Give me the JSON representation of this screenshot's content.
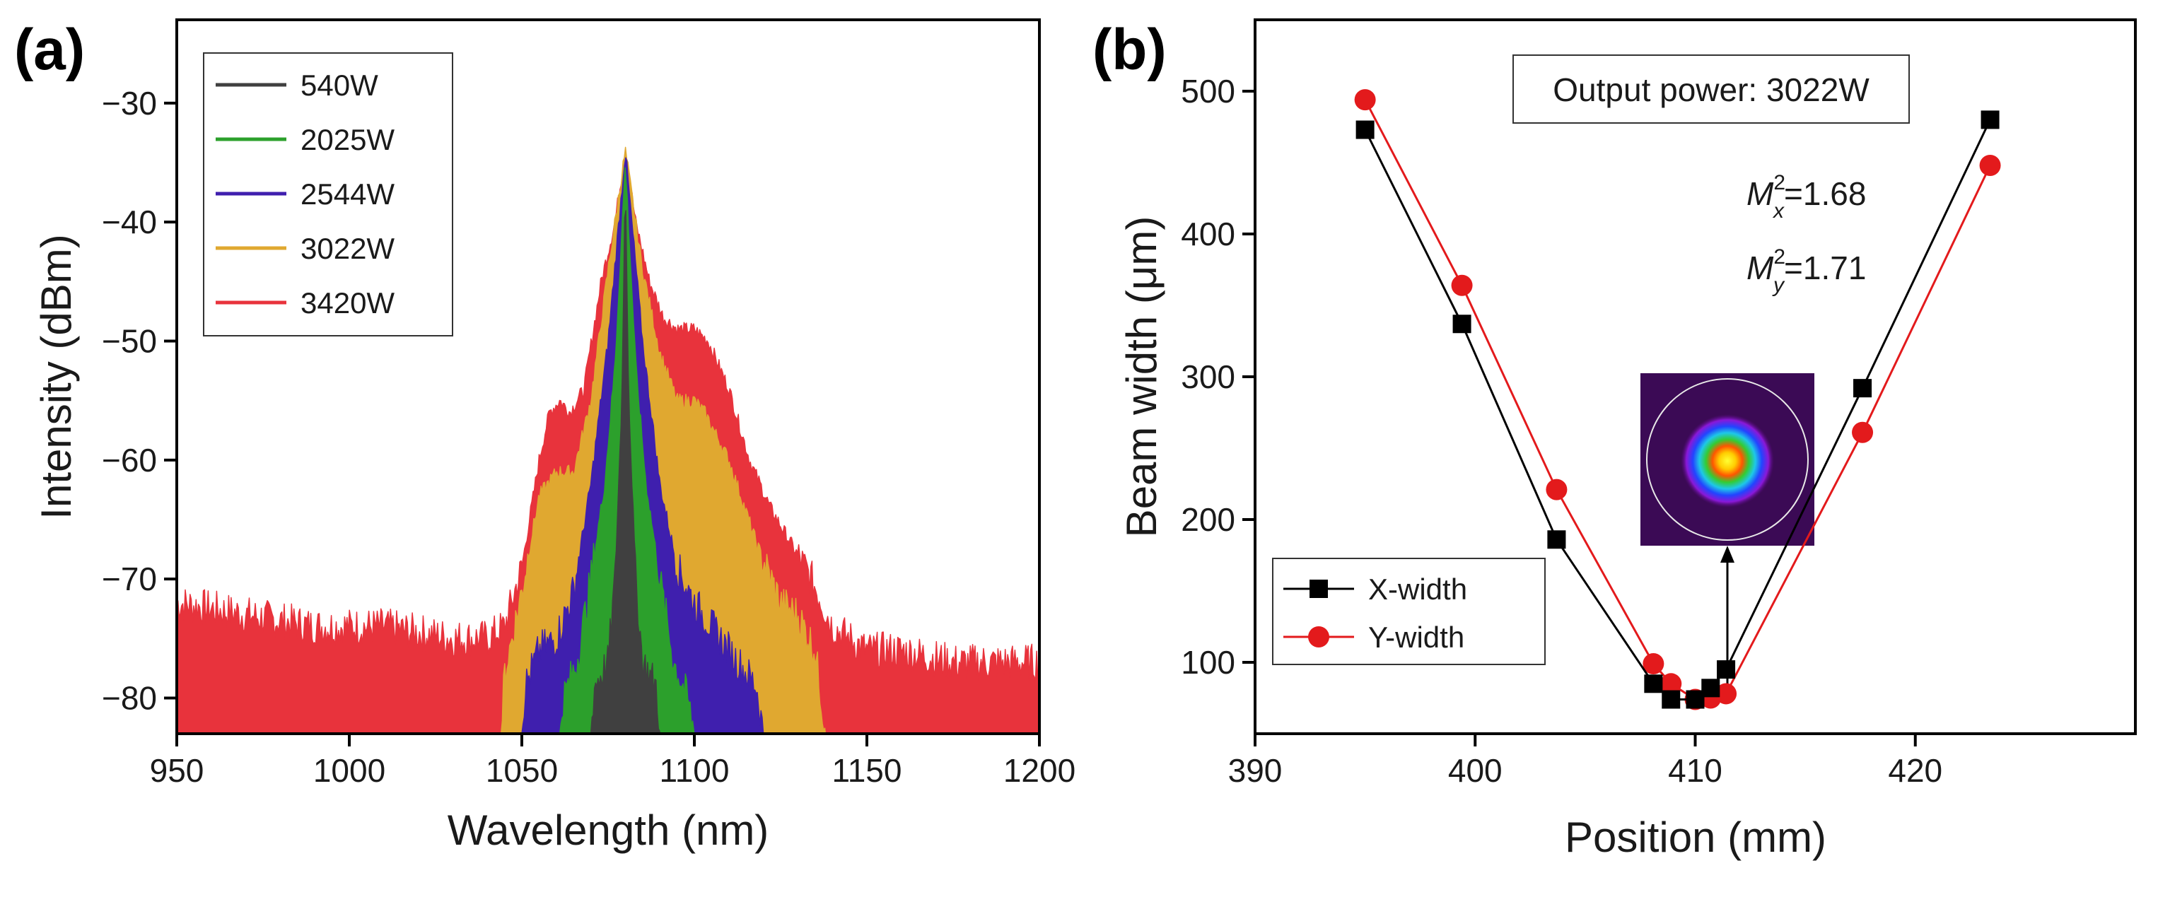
{
  "figure": {
    "panel_a_label": "(a)",
    "panel_b_label": "(b)"
  },
  "chart_data": [
    {
      "type": "line",
      "panel": "(a)",
      "xlabel": "Wavelength (nm)",
      "ylabel": "Intensity (dBm)",
      "xlim": [
        950,
        1200
      ],
      "ylim": [
        -83,
        -23
      ],
      "xticks": [
        950,
        1000,
        1050,
        1100,
        1150,
        1200
      ],
      "yticks": [
        -80,
        -70,
        -60,
        -50,
        -40,
        -30
      ],
      "tick_labels_y": [
        "−80",
        "−70",
        "−60",
        "−50",
        "−40",
        "−30"
      ],
      "legend_position": "top-left",
      "series": [
        {
          "name": "540W",
          "color": "#404040",
          "points": [
            [
              1070,
              -83
            ],
            [
              1071,
              -79
            ],
            [
              1075,
              -77
            ],
            [
              1077,
              -70
            ],
            [
              1079,
              -55
            ],
            [
              1080,
              -36
            ],
            [
              1081,
              -55
            ],
            [
              1083,
              -70
            ],
            [
              1085,
              -77
            ],
            [
              1089,
              -79
            ],
            [
              1090,
              -83
            ]
          ]
        },
        {
          "name": "2025W",
          "color": "#2ca02c",
          "points": [
            [
              1061,
              -83
            ],
            [
              1062,
              -80
            ],
            [
              1066,
              -77
            ],
            [
              1070,
              -70
            ],
            [
              1074,
              -62
            ],
            [
              1077,
              -52
            ],
            [
              1080,
              -35
            ],
            [
              1083,
              -52
            ],
            [
              1086,
              -62
            ],
            [
              1090,
              -70
            ],
            [
              1094,
              -77
            ],
            [
              1098,
              -80
            ],
            [
              1100,
              -83
            ]
          ]
        },
        {
          "name": "2544W",
          "color": "#3f1fae",
          "points": [
            [
              1050,
              -83
            ],
            [
              1051,
              -79
            ],
            [
              1055,
              -76
            ],
            [
              1060,
              -75
            ],
            [
              1065,
              -71
            ],
            [
              1070,
              -62
            ],
            [
              1075,
              -50
            ],
            [
              1080,
              -34
            ],
            [
              1085,
              -50
            ],
            [
              1090,
              -62
            ],
            [
              1095,
              -69
            ],
            [
              1100,
              -72
            ],
            [
              1110,
              -76
            ],
            [
              1118,
              -79
            ],
            [
              1120,
              -83
            ]
          ]
        },
        {
          "name": "3022W",
          "color": "#e0a830",
          "points": [
            [
              1044,
              -83
            ],
            [
              1045,
              -78
            ],
            [
              1050,
              -71
            ],
            [
              1055,
              -63
            ],
            [
              1060,
              -61
            ],
            [
              1065,
              -61
            ],
            [
              1070,
              -55
            ],
            [
              1075,
              -44
            ],
            [
              1080,
              -34
            ],
            [
              1085,
              -44
            ],
            [
              1090,
              -51
            ],
            [
              1095,
              -55
            ],
            [
              1100,
              -55
            ],
            [
              1103,
              -56
            ],
            [
              1110,
              -60
            ],
            [
              1118,
              -67
            ],
            [
              1125,
              -72
            ],
            [
              1130,
              -73
            ],
            [
              1135,
              -76
            ],
            [
              1138,
              -83
            ]
          ]
        },
        {
          "name": "3420W",
          "color": "#e8333c",
          "points": [
            [
              950,
              -72
            ],
            [
              970,
              -73
            ],
            [
              990,
              -74
            ],
            [
              1010,
              -74
            ],
            [
              1030,
              -75
            ],
            [
              1040,
              -75
            ],
            [
              1045,
              -74
            ],
            [
              1050,
              -69
            ],
            [
              1055,
              -60
            ],
            [
              1058,
              -56
            ],
            [
              1061,
              -55
            ],
            [
              1064,
              -56
            ],
            [
              1068,
              -54
            ],
            [
              1073,
              -45
            ],
            [
              1077,
              -40
            ],
            [
              1080,
              -34
            ],
            [
              1083,
              -40
            ],
            [
              1087,
              -45
            ],
            [
              1091,
              -48
            ],
            [
              1095,
              -49
            ],
            [
              1100,
              -49
            ],
            [
              1104,
              -50
            ],
            [
              1110,
              -54
            ],
            [
              1116,
              -60
            ],
            [
              1122,
              -64
            ],
            [
              1128,
              -67
            ],
            [
              1134,
              -70
            ],
            [
              1140,
              -74
            ],
            [
              1150,
              -76
            ],
            [
              1160,
              -76
            ],
            [
              1175,
              -77
            ],
            [
              1190,
              -77
            ],
            [
              1200,
              -77
            ]
          ]
        }
      ]
    },
    {
      "type": "scatter",
      "panel": "(b)",
      "xlabel": "Position (mm)",
      "ylabel": "Beam width (μm)",
      "xlim": [
        390,
        430
      ],
      "ylim": [
        50,
        550
      ],
      "xticks": [
        390,
        400,
        410,
        420
      ],
      "yticks": [
        100,
        200,
        300,
        400,
        500
      ],
      "legend_position": "bottom-left",
      "annotation_box": "Output power: 3022W",
      "annotations": {
        "mx_base": "M",
        "mx_sup": "2",
        "mx_sub": "x",
        "mx_value": "=1.68",
        "my_base": "M",
        "my_sup": "2",
        "my_sub": "y",
        "my_value": "=1.71"
      },
      "inset": "beam profile image with arrow pointing to beam waist",
      "series": [
        {
          "name": "X-width",
          "marker": "square",
          "color": "#000000",
          "x": [
            395.0,
            399.4,
            403.7,
            408.1,
            408.9,
            410.0,
            410.7,
            411.4,
            417.6,
            423.4
          ],
          "y": [
            473,
            337,
            186,
            85,
            74,
            74,
            82,
            95,
            292,
            480
          ]
        },
        {
          "name": "Y-width",
          "marker": "circle",
          "color": "#e31a1c",
          "x": [
            395.0,
            399.4,
            403.7,
            408.1,
            408.9,
            410.0,
            410.7,
            411.4,
            417.6,
            423.4
          ],
          "y": [
            494,
            364,
            221,
            99,
            85,
            74,
            75,
            78,
            261,
            448
          ]
        }
      ]
    }
  ]
}
